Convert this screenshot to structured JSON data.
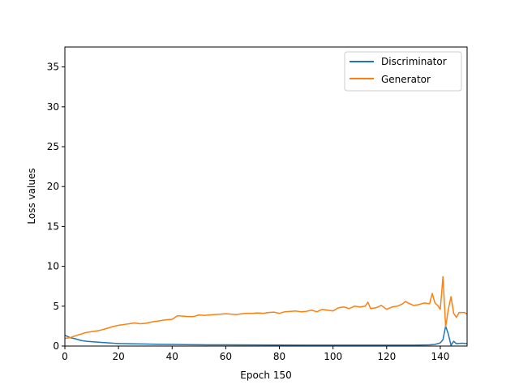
{
  "chart_data": {
    "type": "line",
    "title": "",
    "xlabel": "Epoch 150",
    "ylabel": "Loss values",
    "xlim": [
      0,
      150
    ],
    "ylim": [
      0,
      37.5
    ],
    "xticks": [
      0,
      20,
      40,
      60,
      80,
      100,
      120,
      140
    ],
    "yticks": [
      0,
      5,
      10,
      15,
      20,
      25,
      30,
      35
    ],
    "grid": false,
    "legend_position": "top-right",
    "series": [
      {
        "name": "Discriminator",
        "color": "#1f77b4",
        "points": [
          [
            0,
            1.35
          ],
          [
            2,
            1.05
          ],
          [
            4,
            0.9
          ],
          [
            6,
            0.7
          ],
          [
            8,
            0.6
          ],
          [
            10,
            0.55
          ],
          [
            12,
            0.5
          ],
          [
            14,
            0.45
          ],
          [
            16,
            0.4
          ],
          [
            18,
            0.35
          ],
          [
            20,
            0.32
          ],
          [
            25,
            0.28
          ],
          [
            30,
            0.25
          ],
          [
            35,
            0.22
          ],
          [
            40,
            0.2
          ],
          [
            45,
            0.18
          ],
          [
            50,
            0.16
          ],
          [
            60,
            0.15
          ],
          [
            70,
            0.14
          ],
          [
            80,
            0.13
          ],
          [
            90,
            0.12
          ],
          [
            100,
            0.12
          ],
          [
            110,
            0.12
          ],
          [
            120,
            0.12
          ],
          [
            130,
            0.12
          ],
          [
            136,
            0.15
          ],
          [
            138,
            0.2
          ],
          [
            140,
            0.4
          ],
          [
            141,
            0.8
          ],
          [
            142,
            2.5
          ],
          [
            143,
            1.5
          ],
          [
            144,
            0.1
          ],
          [
            145,
            0.6
          ],
          [
            146,
            0.3
          ],
          [
            148,
            0.35
          ],
          [
            150,
            0.3
          ]
        ]
      },
      {
        "name": "Generator",
        "color": "#ff7f0e",
        "points": [
          [
            0,
            0.95
          ],
          [
            2,
            1.05
          ],
          [
            4,
            1.3
          ],
          [
            6,
            1.5
          ],
          [
            8,
            1.7
          ],
          [
            10,
            1.8
          ],
          [
            12,
            1.9
          ],
          [
            14,
            2.05
          ],
          [
            16,
            2.25
          ],
          [
            18,
            2.45
          ],
          [
            20,
            2.6
          ],
          [
            22,
            2.7
          ],
          [
            24,
            2.8
          ],
          [
            26,
            2.9
          ],
          [
            28,
            2.8
          ],
          [
            30,
            2.85
          ],
          [
            32,
            3.0
          ],
          [
            34,
            3.1
          ],
          [
            36,
            3.2
          ],
          [
            38,
            3.3
          ],
          [
            40,
            3.35
          ],
          [
            42,
            3.8
          ],
          [
            44,
            3.75
          ],
          [
            46,
            3.7
          ],
          [
            48,
            3.7
          ],
          [
            50,
            3.9
          ],
          [
            52,
            3.85
          ],
          [
            54,
            3.9
          ],
          [
            56,
            3.95
          ],
          [
            58,
            4.0
          ],
          [
            60,
            4.05
          ],
          [
            62,
            4.0
          ],
          [
            64,
            3.95
          ],
          [
            66,
            4.05
          ],
          [
            68,
            4.1
          ],
          [
            70,
            4.1
          ],
          [
            72,
            4.15
          ],
          [
            74,
            4.1
          ],
          [
            76,
            4.2
          ],
          [
            78,
            4.25
          ],
          [
            80,
            4.1
          ],
          [
            82,
            4.3
          ],
          [
            84,
            4.35
          ],
          [
            86,
            4.4
          ],
          [
            88,
            4.3
          ],
          [
            90,
            4.35
          ],
          [
            92,
            4.5
          ],
          [
            94,
            4.3
          ],
          [
            96,
            4.6
          ],
          [
            98,
            4.5
          ],
          [
            100,
            4.4
          ],
          [
            102,
            4.8
          ],
          [
            104,
            4.9
          ],
          [
            106,
            4.7
          ],
          [
            108,
            5.0
          ],
          [
            110,
            4.9
          ],
          [
            112,
            5.0
          ],
          [
            113,
            5.5
          ],
          [
            114,
            4.7
          ],
          [
            116,
            4.8
          ],
          [
            118,
            5.1
          ],
          [
            120,
            4.6
          ],
          [
            122,
            4.9
          ],
          [
            124,
            5.0
          ],
          [
            126,
            5.3
          ],
          [
            127,
            5.6
          ],
          [
            128,
            5.4
          ],
          [
            130,
            5.1
          ],
          [
            132,
            5.2
          ],
          [
            134,
            5.4
          ],
          [
            136,
            5.3
          ],
          [
            137,
            6.6
          ],
          [
            138,
            5.4
          ],
          [
            139,
            5.1
          ],
          [
            140,
            4.6
          ],
          [
            141,
            8.7
          ],
          [
            142,
            2.4
          ],
          [
            143,
            4.6
          ],
          [
            144,
            6.2
          ],
          [
            145,
            4.1
          ],
          [
            146,
            3.6
          ],
          [
            147,
            4.2
          ],
          [
            149,
            4.2
          ],
          [
            150,
            4.0
          ]
        ]
      }
    ]
  }
}
